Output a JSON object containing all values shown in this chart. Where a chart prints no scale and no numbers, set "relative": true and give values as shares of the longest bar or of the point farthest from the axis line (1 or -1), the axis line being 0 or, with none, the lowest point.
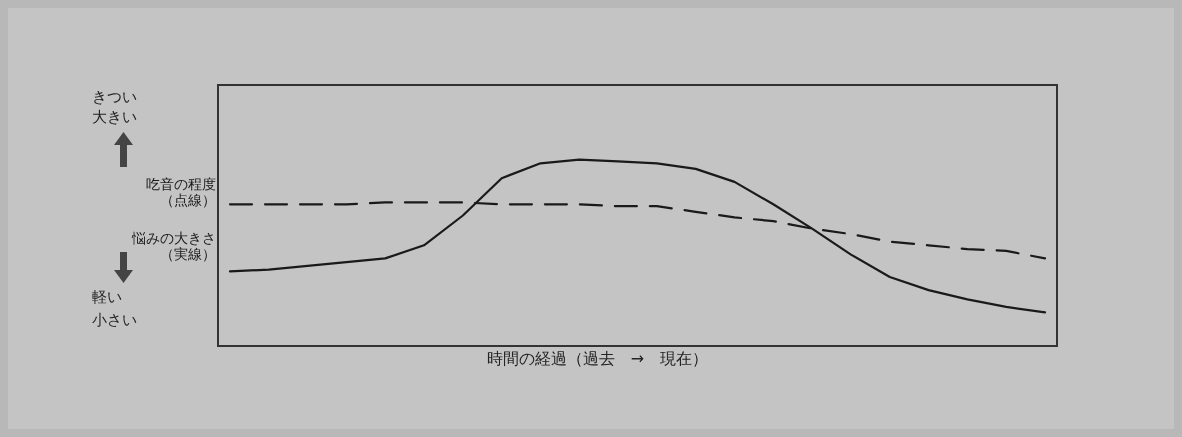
{
  "chart_data": {
    "type": "line",
    "relative": true,
    "legend": "left",
    "categories": [
      null,
      null,
      null,
      null,
      null,
      null,
      null,
      null,
      null,
      null,
      null,
      null,
      null,
      null,
      null,
      null,
      null,
      null,
      null,
      null,
      null,
      null
    ],
    "series": [
      {
        "name": "吃音の程度（点線）",
        "color": "#1a1a1a",
        "line_style": "dashed",
        "values": [
          0.76,
          0.76,
          0.76,
          0.76,
          0.77,
          0.77,
          0.77,
          0.76,
          0.76,
          0.76,
          0.75,
          0.75,
          0.72,
          0.69,
          0.67,
          0.63,
          0.6,
          0.56,
          0.54,
          0.52,
          0.51,
          0.47
        ]
      },
      {
        "name": "悩みの大きさ（実線）",
        "color": "#1a1a1a",
        "line_style": "solid",
        "values": [
          0.4,
          0.41,
          0.43,
          0.45,
          0.47,
          0.54,
          0.7,
          0.9,
          0.98,
          1.0,
          0.99,
          0.98,
          0.95,
          0.88,
          0.76,
          0.63,
          0.49,
          0.37,
          0.3,
          0.25,
          0.21,
          0.18
        ]
      }
    ],
    "xlabel": "時間の経過（過去　→　現在）",
    "annotations": [
      "きつい",
      "大きい",
      "軽い",
      "小さい"
    ]
  }
}
